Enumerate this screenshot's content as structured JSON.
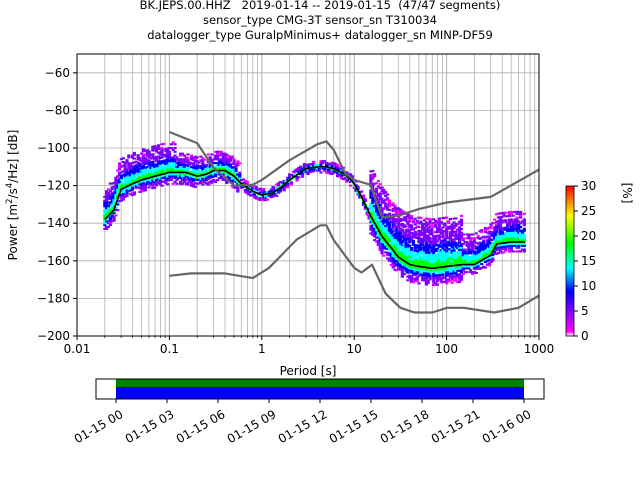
{
  "title": {
    "line1": "BK.JEPS.00.HHZ   2019-01-14 -- 2019-01-15  (47/47 segments)",
    "line2": "sensor_type CMG-3T sensor_sn T310034",
    "line3": "datalogger_type GuralpMinimus+ datalogger_sn MINP-DF59"
  },
  "chart_data": [
    {
      "type": "heatmap",
      "title": "BK.JEPS.00.HHZ   2019-01-14 -- 2019-01-15  (47/47 segments)",
      "xlabel": "Period [s]",
      "ylabel": "Power [m²/s⁴/Hz] [dB]",
      "xscale": "log",
      "xlim": [
        0.01,
        1000
      ],
      "ylim": [
        -200,
        -50
      ],
      "xticks": [
        0.01,
        0.1,
        1,
        10,
        100,
        1000
      ],
      "xtick_labels": [
        "0.01",
        "0.1",
        "1",
        "10",
        "100",
        "1000"
      ],
      "yticks": [
        -200,
        -180,
        -160,
        -140,
        -120,
        -100,
        -80,
        -60
      ],
      "ytick_labels": [
        "−200",
        "−180",
        "−160",
        "−140",
        "−120",
        "−100",
        "−80",
        "−60"
      ],
      "grid": true,
      "colorbar": {
        "label": "[%]",
        "range": [
          0,
          30
        ],
        "ticks": [
          0,
          5,
          10,
          15,
          20,
          25,
          30
        ],
        "tick_labels": [
          "0",
          "5",
          "10",
          "15",
          "20",
          "25",
          "30"
        ],
        "colors": [
          "#ffffff",
          "#ff00ff",
          "#0000ff",
          "#00ffff",
          "#00ff00",
          "#ffff00",
          "#ff0000"
        ]
      },
      "series": [
        {
          "name": "",
          "role": "mean",
          "color": "#000000",
          "x": [
            0.02,
            0.025,
            0.03,
            0.04,
            0.05,
            0.07,
            0.1,
            0.15,
            0.2,
            0.25,
            0.3,
            0.4,
            0.5,
            0.6,
            0.8,
            1,
            1.3,
            1.6,
            2,
            3,
            4,
            5,
            6,
            8,
            10,
            12,
            15,
            20,
            25,
            30,
            40,
            50,
            70,
            100,
            150,
            200,
            300,
            350,
            500,
            700
          ],
          "y": [
            -138,
            -133,
            -122,
            -119,
            -117,
            -115,
            -113,
            -113,
            -115,
            -114,
            -112,
            -112,
            -115,
            -119,
            -123,
            -125,
            -124,
            -121,
            -117,
            -111,
            -110,
            -110,
            -111,
            -114,
            -119,
            -126,
            -136,
            -147,
            -153,
            -158,
            -162,
            -163,
            -164,
            -163,
            -162,
            -162,
            -157,
            -151,
            -150,
            -150
          ]
        },
        {
          "name": "",
          "role": "noise-model-high",
          "color": "#666666",
          "x": [
            0.1,
            0.2,
            0.3,
            0.5,
            0.8,
            1,
            2,
            4,
            5,
            6,
            8,
            10,
            15,
            20,
            30,
            50,
            100,
            300,
            1000
          ],
          "y": [
            -91.5,
            -97.4,
            -110.5,
            -120,
            -119.5,
            -117,
            -106.5,
            -98,
            -96.5,
            -101,
            -113.5,
            -117,
            -119.5,
            -137,
            -136,
            -132.5,
            -129,
            -126,
            -111.5
          ]
        },
        {
          "name": "",
          "role": "noise-model-low",
          "color": "#666666",
          "x": [
            0.1,
            0.17,
            0.4,
            0.8,
            1.2,
            2.4,
            4.3,
            5,
            6,
            10,
            12,
            15.6,
            21.9,
            31.6,
            45,
            70,
            101,
            154,
            328,
            600,
            1000
          ],
          "y": [
            -168,
            -166.7,
            -166.7,
            -169.2,
            -163.7,
            -148.6,
            -141.1,
            -141.1,
            -149,
            -163.8,
            -166.2,
            -162.1,
            -177.5,
            -185,
            -187.5,
            -187.5,
            -185,
            -185,
            -187.5,
            -185,
            -178.5
          ]
        }
      ]
    },
    {
      "type": "timeline",
      "xlim": [
        "2019-01-14 23:00",
        "2019-01-16 01:00"
      ],
      "xtick_labels": [
        "01-15 00",
        "01-15 03",
        "01-15 06",
        "01-15 09",
        "01-15 12",
        "01-15 15",
        "01-15 18",
        "01-15 21",
        "01-16 00"
      ],
      "coverage_start": "01-15 00",
      "coverage_end": "01-16 00",
      "bars": [
        {
          "role": "data-coverage",
          "color": "#008000"
        },
        {
          "role": "psd-segments",
          "color": "#0000ff"
        }
      ]
    }
  ]
}
